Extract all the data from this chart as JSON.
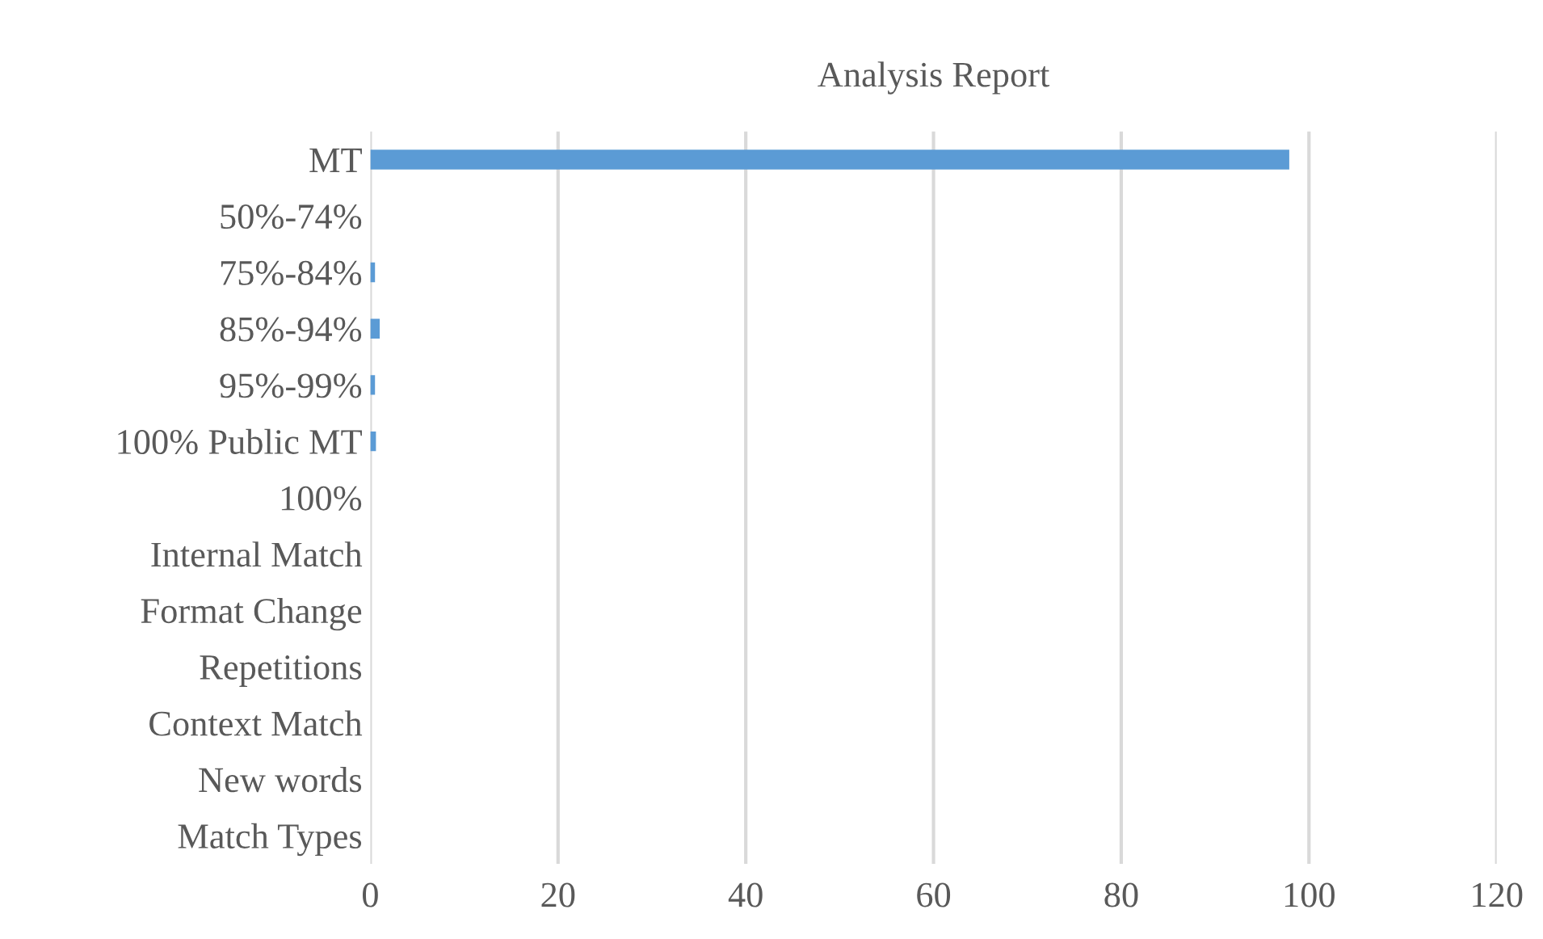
{
  "chart_data": {
    "type": "bar",
    "orientation": "horizontal",
    "title": "Analysis Report",
    "categories": [
      "MT",
      "50%-74%",
      "75%-84%",
      "85%-94%",
      "95%-99%",
      "100% Public MT",
      "100%",
      "Internal Match",
      "Format Change",
      "Repetitions",
      "Context Match",
      "New words",
      "Match Types"
    ],
    "values": [
      97.9,
      0,
      0.5,
      1.0,
      0.5,
      0.6,
      0,
      0,
      0,
      0,
      0,
      0,
      0
    ],
    "color": "#5b9bd5",
    "xlim": [
      0,
      120
    ],
    "xticks": [
      0,
      20,
      40,
      60,
      80,
      100,
      120
    ],
    "grid": "x"
  }
}
